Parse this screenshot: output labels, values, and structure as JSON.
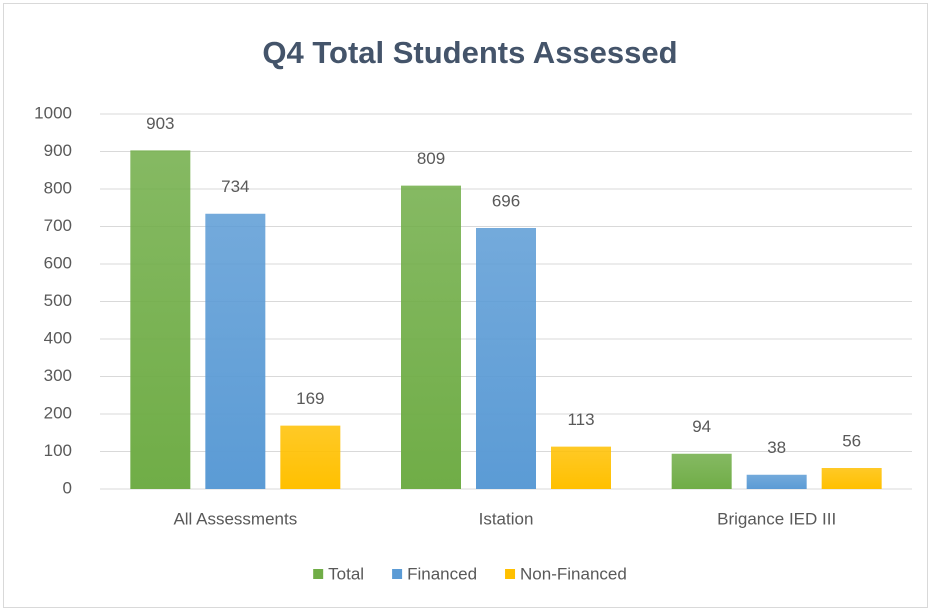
{
  "chart_data": {
    "type": "bar",
    "title": "Q4 Total Students Assessed",
    "categories": [
      "All Assessments",
      "Istation",
      "Brigance IED III"
    ],
    "series": [
      {
        "name": "Total",
        "color": "#70ad47",
        "values": [
          903,
          809,
          94
        ]
      },
      {
        "name": "Financed",
        "color": "#5b9bd5",
        "values": [
          734,
          696,
          38
        ]
      },
      {
        "name": "Non-Financed",
        "color": "#ffc000",
        "values": [
          169,
          113,
          56
        ]
      }
    ],
    "ylim": [
      0,
      1000
    ],
    "yticks": [
      0,
      100,
      200,
      300,
      400,
      500,
      600,
      700,
      800,
      900,
      1000
    ],
    "grid": true,
    "legend": "bottom"
  }
}
